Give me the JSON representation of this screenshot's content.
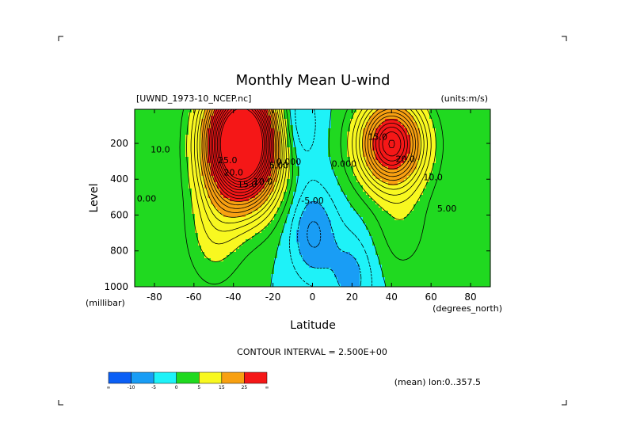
{
  "chart_data": {
    "type": "heatmap",
    "title": "Monthly Mean U-wind",
    "dataset_label": "[UWND_1973-10_NCEP.nc]",
    "units_label": "(units:m/s)",
    "xlabel": "Latitude",
    "x_units": "(degrees_north)",
    "ylabel": "Level",
    "y_units": "(millibar)",
    "xlim": [
      -90,
      90
    ],
    "ylim": [
      1000,
      10
    ],
    "x_ticks": [
      -80,
      -60,
      -40,
      -20,
      0,
      20,
      40,
      60,
      80
    ],
    "y_ticks": [
      200,
      400,
      600,
      800,
      1000
    ],
    "contour_interval_label": "CONTOUR INTERVAL = 2.500E+00",
    "average_label": "(mean) lon:0..357.5",
    "contour_labels": [
      {
        "text": "25.0",
        "x": -43,
        "y": 310
      },
      {
        "text": "20.0",
        "x": -40,
        "y": 380
      },
      {
        "text": "15.0",
        "x": -33,
        "y": 445
      },
      {
        "text": "10.0",
        "x": -25,
        "y": 430
      },
      {
        "text": "5.00",
        "x": -17,
        "y": 340
      },
      {
        "text": "0.000",
        "x": -12,
        "y": 320
      },
      {
        "text": "-5.00",
        "x": 0,
        "y": 535
      },
      {
        "text": "0.000",
        "x": 16,
        "y": 330
      },
      {
        "text": "20.0",
        "x": 47,
        "y": 305
      },
      {
        "text": "10.0",
        "x": 61,
        "y": 405
      },
      {
        "text": "5.00",
        "x": 68,
        "y": 580
      },
      {
        "text": "0.00",
        "x": -84,
        "y": 525
      },
      {
        "text": "10.0",
        "x": -77,
        "y": 250
      },
      {
        "text": "15.0",
        "x": 33,
        "y": 180
      }
    ],
    "field_centers": [
      {
        "lat": -40,
        "p": 200,
        "u": 40
      },
      {
        "lat": -30,
        "p": 200,
        "u": 32
      },
      {
        "lat": 40,
        "p": 200,
        "u": 35
      },
      {
        "lat": 0,
        "p": 700,
        "u": -8
      },
      {
        "lat": 20,
        "p": 950,
        "u": -6
      },
      {
        "lat": -10,
        "p": 100,
        "u": -8
      }
    ],
    "legend": {
      "colors": [
        "#0b5ff5",
        "#199df5",
        "#1ef2f8",
        "#20d920",
        "#f8f820",
        "#f8a011",
        "#f51717"
      ],
      "labels": [
        "∞",
        "-10",
        "-5",
        "0",
        "5",
        "15",
        "25",
        "∞"
      ]
    }
  }
}
